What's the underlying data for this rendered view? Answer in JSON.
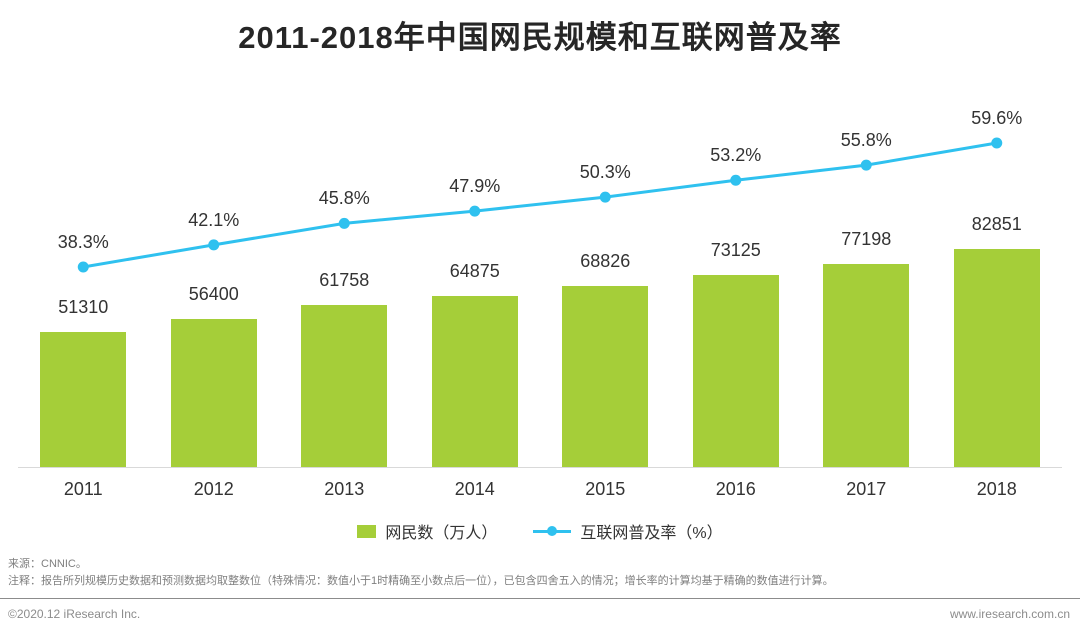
{
  "title": "2011-2018年中国网民规模和互联网普及率",
  "chart_data": {
    "type": "combo",
    "categories": [
      "2011",
      "2012",
      "2013",
      "2014",
      "2015",
      "2016",
      "2017",
      "2018"
    ],
    "series": [
      {
        "name": "网民数（万人）",
        "type": "bar",
        "color": "#a5ce39",
        "values": [
          51310,
          56400,
          61758,
          64875,
          68826,
          73125,
          77198,
          82851
        ]
      },
      {
        "name": "互联网普及率（%）",
        "type": "line",
        "color": "#2fc1ef",
        "values": [
          38.3,
          42.1,
          45.8,
          47.9,
          50.3,
          53.2,
          55.8,
          59.6
        ],
        "value_labels": [
          "38.3%",
          "42.1%",
          "45.8%",
          "47.9%",
          "50.3%",
          "53.2%",
          "55.8%",
          "59.6%"
        ]
      }
    ],
    "legend_position": "bottom",
    "gridlines": false,
    "data_labels": true,
    "y_axis_visible": false
  },
  "footer": {
    "source": "来源：CNNIC。",
    "note": "注释：报告所列规模历史数据和预测数据均取整数位（特殊情况：数值小于1时精确至小数点后一位），已包含四舍五入的情况；增长率的计算均基于精确的数值进行计算。",
    "copyright": "©2020.12 iResearch Inc.",
    "website": "www.iresearch.com.cn"
  }
}
